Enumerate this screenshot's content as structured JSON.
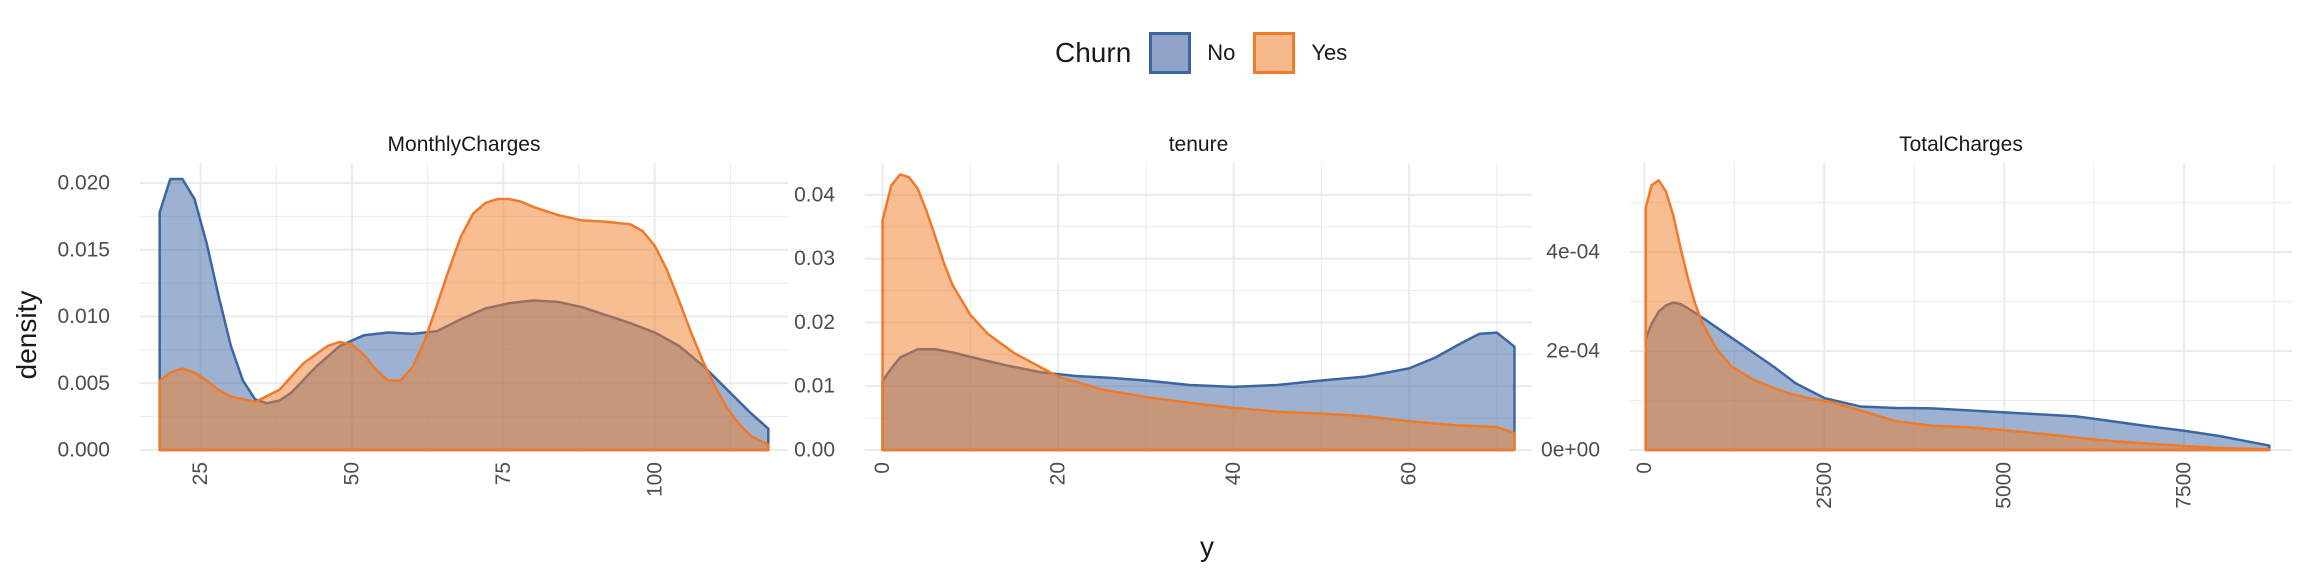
{
  "legend": {
    "title": "Churn",
    "items": [
      {
        "label": "No",
        "fill": "#8ea3c7",
        "stroke": "#3b66a3"
      },
      {
        "label": "Yes",
        "fill": "#f5b98c",
        "stroke": "#ef7a2a"
      }
    ]
  },
  "colors": {
    "no_stroke": "#3b66a3",
    "yes_stroke": "#ef7a2a",
    "no_fill": "#3b66a3",
    "yes_fill": "#f27c28",
    "grid": "#ebebeb"
  },
  "chart_data": {
    "type": "area",
    "subtype": "density (faceted)",
    "xlabel": "y",
    "ylabel": "density",
    "legend_position": "top",
    "grid": true,
    "facets": [
      {
        "title": "MonthlyCharges",
        "xlim": [
          15,
          122
        ],
        "ylim": [
          0,
          0.0215
        ],
        "x_ticks": [
          25,
          50,
          75,
          100
        ],
        "x_tick_labels": [
          "25",
          "50",
          "75",
          "100"
        ],
        "y_ticks": [
          0,
          0.005,
          0.01,
          0.015,
          0.02
        ],
        "y_tick_labels": [
          "0.000",
          "0.005",
          "0.010",
          "0.015",
          "0.020"
        ],
        "series": [
          {
            "name": "No",
            "x": [
              18.25,
              20,
              22,
              24,
              26,
              28,
              30,
              32,
              34,
              36,
              38,
              40,
              44,
              48,
              52,
              56,
              60,
              64,
              68,
              72,
              76,
              80,
              84,
              88,
              92,
              96,
              100,
              104,
              108,
              112,
              116,
              118.75
            ],
            "y": [
              0.0178,
              0.0203,
              0.0203,
              0.0188,
              0.0155,
              0.0115,
              0.0078,
              0.0052,
              0.0038,
              0.0035,
              0.0037,
              0.0043,
              0.0062,
              0.0078,
              0.0086,
              0.0088,
              0.0087,
              0.0089,
              0.0098,
              0.0106,
              0.011,
              0.0112,
              0.0111,
              0.0107,
              0.0101,
              0.0095,
              0.0088,
              0.0078,
              0.0063,
              0.0045,
              0.0027,
              0.0016
            ]
          },
          {
            "name": "Yes",
            "x": [
              18.25,
              20,
              22,
              24,
              26,
              28,
              30,
              34,
              38,
              42,
              46,
              48,
              50,
              52,
              54,
              56,
              58,
              60,
              62,
              64,
              66,
              68,
              70,
              72,
              74,
              76,
              78,
              80,
              84,
              88,
              92,
              96,
              98,
              100,
              102,
              104,
              106,
              108,
              110,
              112,
              114,
              116,
              118.75
            ],
            "y": [
              0.0052,
              0.0058,
              0.0061,
              0.0058,
              0.0052,
              0.0045,
              0.004,
              0.0036,
              0.0045,
              0.0065,
              0.0078,
              0.0081,
              0.0079,
              0.0071,
              0.006,
              0.0052,
              0.0052,
              0.0062,
              0.0082,
              0.0108,
              0.0135,
              0.016,
              0.0177,
              0.0185,
              0.0188,
              0.0188,
              0.0186,
              0.0182,
              0.0176,
              0.0172,
              0.0171,
              0.0169,
              0.0164,
              0.0153,
              0.0135,
              0.0112,
              0.0088,
              0.0066,
              0.0047,
              0.0031,
              0.0019,
              0.001,
              0.0004
            ]
          }
        ]
      },
      {
        "title": "tenure",
        "xlim": [
          -2,
          74
        ],
        "ylim": [
          0,
          0.045
        ],
        "x_ticks": [
          0,
          20,
          40,
          60
        ],
        "x_tick_labels": [
          "0",
          "20",
          "40",
          "60"
        ],
        "y_ticks": [
          0,
          0.01,
          0.02,
          0.03,
          0.04
        ],
        "y_tick_labels": [
          "0.00",
          "0.01",
          "0.02",
          "0.03",
          "0.04"
        ],
        "series": [
          {
            "name": "No",
            "x": [
              0,
              1,
              2,
              4,
              6,
              8,
              10,
              14,
              18,
              22,
              26,
              30,
              35,
              40,
              45,
              50,
              55,
              60,
              63,
              66,
              68,
              70,
              72
            ],
            "y": [
              0.0108,
              0.0128,
              0.0145,
              0.0158,
              0.0158,
              0.0153,
              0.0146,
              0.0133,
              0.0122,
              0.0116,
              0.0113,
              0.0109,
              0.0102,
              0.0099,
              0.0102,
              0.0109,
              0.0115,
              0.0128,
              0.0145,
              0.0168,
              0.0182,
              0.0184,
              0.0162
            ]
          },
          {
            "name": "Yes",
            "x": [
              0,
              1,
              2,
              3,
              4,
              5,
              6,
              7,
              8,
              10,
              12,
              15,
              20,
              25,
              30,
              35,
              40,
              45,
              50,
              55,
              60,
              65,
              70,
              72
            ],
            "y": [
              0.036,
              0.0415,
              0.0432,
              0.0428,
              0.041,
              0.0375,
              0.0335,
              0.0293,
              0.0258,
              0.0212,
              0.0182,
              0.0152,
              0.0115,
              0.0095,
              0.0083,
              0.0074,
              0.0066,
              0.006,
              0.0057,
              0.0053,
              0.0045,
              0.0039,
              0.0036,
              0.0027
            ]
          }
        ]
      },
      {
        "title": "TotalCharges",
        "xlim": [
          -200,
          9000
        ],
        "ylim": [
          0,
          0.00058
        ],
        "x_ticks": [
          0,
          2500,
          5000,
          7500
        ],
        "x_tick_labels": [
          "0",
          "2500",
          "5000",
          "7500"
        ],
        "y_ticks": [
          0,
          0.0002,
          0.0004
        ],
        "y_tick_labels": [
          "0e+00",
          "2e-04",
          "4e-04"
        ],
        "series": [
          {
            "name": "No",
            "x": [
              19,
              100,
              200,
              300,
              400,
              500,
              600,
              800,
              1000,
              1200,
              1500,
              1800,
              2100,
              2500,
              3000,
              3500,
              4000,
              4500,
              5000,
              5500,
              6000,
              6500,
              7000,
              7500,
              8000,
              8500,
              8684
            ],
            "y": [
              0.000225,
              0.000255,
              0.00028,
              0.000292,
              0.000298,
              0.000295,
              0.000287,
              0.000268,
              0.000248,
              0.000228,
              0.000198,
              0.000168,
              0.000135,
              0.000105,
              8.8e-05,
              8.5e-05,
              8.4e-05,
              8e-05,
              7.6e-05,
              7.2e-05,
              6.8e-05,
              5.8e-05,
              4.8e-05,
              3.9e-05,
              2.8e-05,
              1.4e-05,
              9e-06
            ]
          },
          {
            "name": "Yes",
            "x": [
              19,
              100,
              200,
              300,
              400,
              500,
              600,
              700,
              800,
              1000,
              1200,
              1500,
              1800,
              2000,
              2300,
              2600,
              3000,
              3500,
              4000,
              4500,
              5000,
              5500,
              6000,
              6500,
              7000,
              7500,
              8000,
              8500,
              8684
            ],
            "y": [
              0.00049,
              0.000535,
              0.000545,
              0.000522,
              0.000475,
              0.00041,
              0.00035,
              0.000298,
              0.000258,
              0.000205,
              0.00017,
              0.000143,
              0.000125,
              0.000115,
              0.000104,
              9.7e-05,
              8e-05,
              5.8e-05,
              4.9e-05,
              4.6e-05,
              4e-05,
              3.3e-05,
              2.5e-05,
              1.8e-05,
              1.3e-05,
              8e-06,
              4e-06,
              2e-06,
              1e-06
            ]
          }
        ]
      }
    ]
  }
}
